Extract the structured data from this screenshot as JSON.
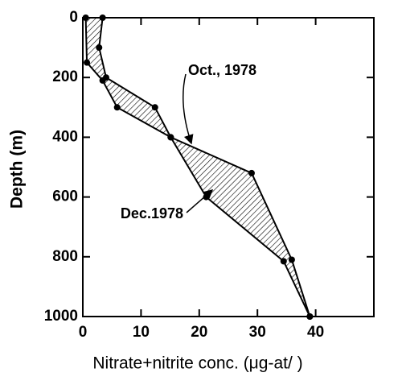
{
  "chart_data": {
    "type": "line",
    "xlabel": "Nitrate+nitrite conc. (μg-at/ )",
    "ylabel": "Depth (m)",
    "xlim": [
      0,
      50
    ],
    "xticks": [
      0,
      10,
      20,
      30,
      40
    ],
    "ylim": [
      0,
      1000
    ],
    "yticks": [
      0,
      200,
      400,
      600,
      800,
      1000
    ],
    "y_inverted": true,
    "hatch_between": true,
    "series": [
      {
        "name": "Oct., 1978",
        "color": "#000000",
        "x": [
          3.4,
          2.8,
          4,
          12.4,
          15.1,
          29,
          35.9,
          39
        ],
        "values": [
          0,
          100,
          200,
          300,
          400,
          520,
          810,
          1000
        ]
      },
      {
        "name": "Dec.1978",
        "color": "#000000",
        "x": [
          0.5,
          0.7,
          3.4,
          5.9,
          15.1,
          21.2,
          34.5,
          39
        ],
        "values": [
          0,
          150,
          210,
          300,
          400,
          600,
          815,
          1000
        ]
      }
    ]
  }
}
